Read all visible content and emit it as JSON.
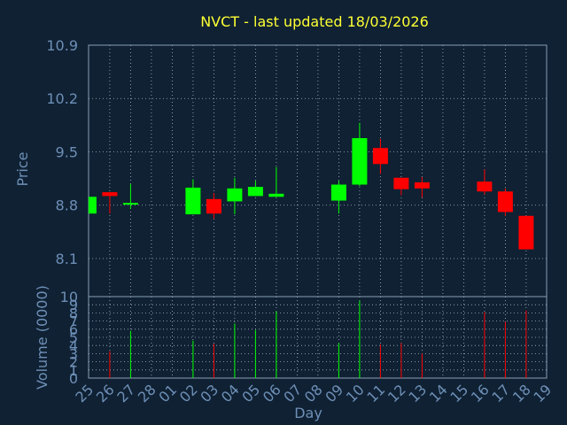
{
  "colors": {
    "background": "#0f2133",
    "plot_background": "#0f2133",
    "axis": "#8aa0b4",
    "grid": "#a9b6c2",
    "title": "#ffff33",
    "label": "#6e8fb6",
    "up": "#00ff00",
    "down": "#ff0000"
  },
  "chart_data": {
    "type": "candlestick",
    "title": "NVCT - last updated 18/03/2026",
    "xlabel": "Day",
    "days": [
      "25",
      "26",
      "27",
      "28",
      "01",
      "02",
      "03",
      "04",
      "05",
      "06",
      "07",
      "08",
      "09",
      "10",
      "11",
      "12",
      "13",
      "14",
      "15",
      "16",
      "17",
      "18",
      "19"
    ],
    "price": {
      "ylabel": "Price",
      "ylim": [
        7.6,
        10.9
      ],
      "ticks": [
        "10.9",
        "10.2",
        "9.5",
        "8.8",
        "8.1"
      ],
      "candles": [
        {
          "day": "25",
          "open": 8.69,
          "close": 8.91,
          "high": 8.91,
          "low": 8.69
        },
        {
          "day": "26",
          "open": 8.97,
          "close": 8.92,
          "high": 8.97,
          "low": 8.69
        },
        {
          "day": "27",
          "open": 8.81,
          "close": 8.83,
          "high": 9.08,
          "low": 8.75
        },
        {
          "day": "28",
          "open": null,
          "close": null,
          "high": null,
          "low": null
        },
        {
          "day": "01",
          "open": null,
          "close": null,
          "high": null,
          "low": null
        },
        {
          "day": "02",
          "open": 8.68,
          "close": 9.03,
          "high": 9.14,
          "low": 8.68
        },
        {
          "day": "03",
          "open": 8.88,
          "close": 8.69,
          "high": 8.96,
          "low": 8.62
        },
        {
          "day": "04",
          "open": 8.85,
          "close": 9.02,
          "high": 9.16,
          "low": 8.68
        },
        {
          "day": "05",
          "open": 8.92,
          "close": 9.04,
          "high": 9.12,
          "low": 8.92
        },
        {
          "day": "06",
          "open": 8.91,
          "close": 8.95,
          "high": 9.3,
          "low": 8.91
        },
        {
          "day": "07",
          "open": null,
          "close": null,
          "high": null,
          "low": null
        },
        {
          "day": "08",
          "open": null,
          "close": null,
          "high": null,
          "low": null
        },
        {
          "day": "09",
          "open": 8.86,
          "close": 9.07,
          "high": 9.12,
          "low": 8.69
        },
        {
          "day": "10",
          "open": 9.07,
          "close": 9.68,
          "high": 9.88,
          "low": 9.05
        },
        {
          "day": "11",
          "open": 9.55,
          "close": 9.34,
          "high": 9.67,
          "low": 9.21
        },
        {
          "day": "12",
          "open": 9.16,
          "close": 9.01,
          "high": 9.16,
          "low": 8.93
        },
        {
          "day": "13",
          "open": 9.1,
          "close": 9.02,
          "high": 9.17,
          "low": 8.9
        },
        {
          "day": "14",
          "open": null,
          "close": null,
          "high": null,
          "low": null
        },
        {
          "day": "15",
          "open": null,
          "close": null,
          "high": null,
          "low": null
        },
        {
          "day": "16",
          "open": 9.11,
          "close": 8.98,
          "high": 9.27,
          "low": 8.94
        },
        {
          "day": "17",
          "open": 8.98,
          "close": 8.71,
          "high": 9.02,
          "low": 8.66
        },
        {
          "day": "18",
          "open": 8.66,
          "close": 8.22,
          "high": 8.66,
          "low": 8.22
        },
        {
          "day": "19",
          "open": null,
          "close": null,
          "high": null,
          "low": null
        }
      ]
    },
    "volume": {
      "ylabel": "Volume (0000)",
      "ylim": [
        0,
        10
      ],
      "ticks": [
        "10",
        "9",
        "8",
        "7",
        "6",
        "5",
        "4",
        "3",
        "2",
        "1",
        "0"
      ],
      "values": [
        null,
        3.3,
        5.8,
        null,
        null,
        4.6,
        4.2,
        6.7,
        5.9,
        8.2,
        null,
        null,
        4.3,
        9.5,
        4.1,
        4.3,
        3.0,
        null,
        null,
        8.1,
        6.9,
        8.3,
        null
      ],
      "direction": [
        "up",
        "down",
        "up",
        null,
        null,
        "up",
        "down",
        "up",
        "up",
        "up",
        null,
        null,
        "up",
        "up",
        "down",
        "down",
        "down",
        null,
        null,
        "down",
        "down",
        "down",
        null
      ]
    }
  }
}
